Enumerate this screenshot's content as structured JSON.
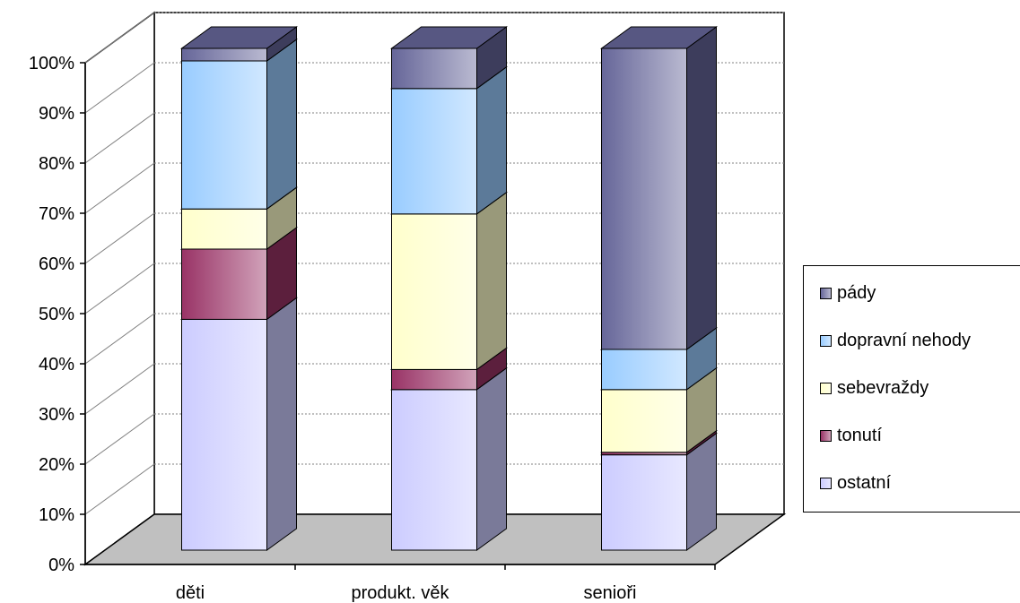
{
  "chart_data": {
    "type": "bar",
    "stacked": true,
    "three_d": true,
    "categories": [
      "děti",
      "produkt. věk",
      "senioři"
    ],
    "series": [
      {
        "name": "ostatní",
        "values": [
          46,
          32,
          19
        ],
        "color": "#ccccff"
      },
      {
        "name": "tonutí",
        "values": [
          14,
          4,
          0.5
        ],
        "color": "#993366"
      },
      {
        "name": "sebevraždy",
        "values": [
          8,
          31,
          12.5
        ],
        "color": "#ffffcc"
      },
      {
        "name": "dopravní nehody",
        "values": [
          29.5,
          25,
          8
        ],
        "color": "#99ccff"
      },
      {
        "name": "pády",
        "values": [
          2.5,
          8,
          60
        ],
        "color": "#666699"
      }
    ],
    "ylim": [
      0,
      100
    ],
    "yticks": [
      "0%",
      "10%",
      "20%",
      "30%",
      "40%",
      "50%",
      "60%",
      "70%",
      "80%",
      "90%",
      "100%"
    ],
    "grid": true,
    "legend_position": "right",
    "legend_order": [
      "pády",
      "dopravní nehody",
      "sebevraždy",
      "tonutí",
      "ostatní"
    ]
  }
}
